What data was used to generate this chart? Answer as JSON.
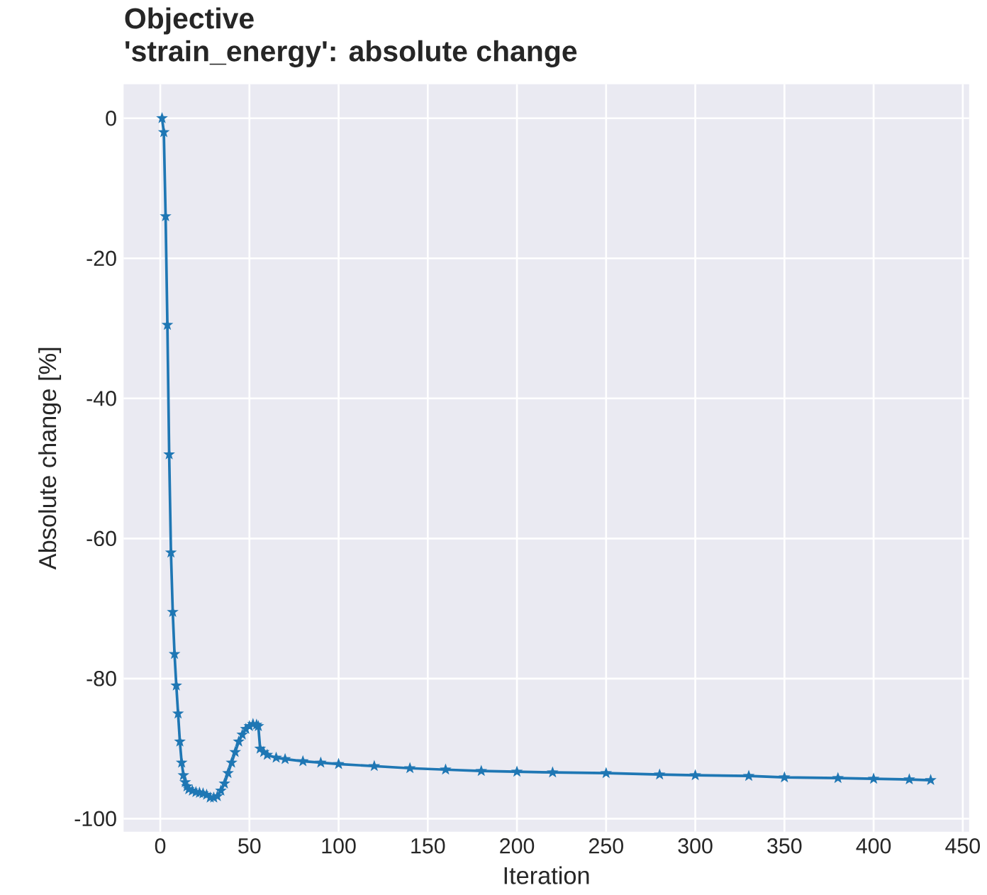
{
  "chart_data": {
    "type": "line",
    "title": "Objective",
    "subtitle": "'strain_energy': absolute change",
    "xlabel": "Iteration",
    "ylabel": "Absolute change [%]",
    "x": [
      1,
      2,
      3,
      4,
      5,
      6,
      7,
      8,
      9,
      10,
      11,
      12,
      13,
      14,
      15,
      16,
      18,
      20,
      22,
      24,
      26,
      28,
      30,
      32,
      34,
      36,
      38,
      40,
      42,
      44,
      46,
      48,
      50,
      52,
      54,
      55,
      56,
      58,
      60,
      65,
      70,
      80,
      90,
      100,
      120,
      140,
      160,
      180,
      200,
      220,
      250,
      280,
      300,
      330,
      350,
      380,
      400,
      420,
      432
    ],
    "series": [
      {
        "color": "#1f77b4",
        "values": [
          0,
          -2,
          -14,
          -29.5,
          -48,
          -62,
          -70.5,
          -76.5,
          -81,
          -85,
          -89,
          -92,
          -93.8,
          -94.8,
          -95.4,
          -95.8,
          -96,
          -96.2,
          -96.3,
          -96.4,
          -96.6,
          -97,
          -97,
          -96.8,
          -96,
          -95,
          -93.5,
          -92,
          -90.5,
          -89,
          -88,
          -87.2,
          -86.8,
          -86.5,
          -86.6,
          -86.8,
          -90,
          -90.5,
          -90.9,
          -91.3,
          -91.5,
          -91.8,
          -92,
          -92.2,
          -92.5,
          -92.8,
          -93,
          -93.2,
          -93.3,
          -93.4,
          -93.5,
          -93.7,
          -93.8,
          -93.9,
          -94.1,
          -94.2,
          -94.3,
          -94.4,
          -94.5
        ]
      }
    ],
    "xlim": [
      -20.55,
      453.55
    ],
    "ylim": [
      -101.85,
      4.85
    ],
    "xticks": [
      0,
      50,
      100,
      150,
      200,
      250,
      300,
      350,
      400,
      450
    ],
    "yticks": [
      -100,
      -80,
      -60,
      -40,
      -20,
      0
    ],
    "grid": true,
    "marker": "star",
    "line_style": "solid"
  }
}
